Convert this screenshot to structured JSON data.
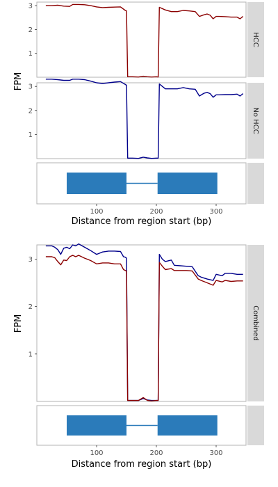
{
  "chart_data": [
    {
      "type": "line",
      "panel_group": "top",
      "ylabel": "FPM",
      "xlabel": "Distance from region start (bp)",
      "xlim": [
        0,
        350
      ],
      "xticks": [
        100,
        200,
        300
      ],
      "facets": [
        {
          "strip": "HCC",
          "ylim": [
            0,
            3.15
          ],
          "yticks": [
            1,
            2,
            3
          ],
          "series": [
            {
              "color": "#8b0000",
              "x": [
                15,
                25,
                35,
                45,
                55,
                60,
                70,
                80,
                90,
                100,
                110,
                120,
                130,
                140,
                148,
                150,
                152,
                160,
                170,
                178,
                185,
                192,
                200,
                203,
                205,
                215,
                225,
                235,
                245,
                255,
                265,
                272,
                280,
                285,
                290,
                295,
                300,
                305,
                315,
                325,
                335,
                340,
                345
              ],
              "y": [
                3.0,
                3.0,
                3.02,
                2.98,
                2.97,
                3.05,
                3.05,
                3.04,
                3.0,
                2.95,
                2.92,
                2.93,
                2.94,
                2.95,
                2.8,
                2.78,
                0.02,
                0.02,
                0.01,
                0.04,
                0.02,
                0.01,
                0.02,
                0.01,
                2.93,
                2.82,
                2.75,
                2.75,
                2.8,
                2.78,
                2.75,
                2.55,
                2.62,
                2.65,
                2.6,
                2.45,
                2.55,
                2.55,
                2.54,
                2.52,
                2.52,
                2.45,
                2.55
              ]
            }
          ]
        },
        {
          "strip": "No HCC",
          "ylim": [
            0,
            3.15
          ],
          "yticks": [
            1,
            2,
            3
          ],
          "series": [
            {
              "color": "#00008b",
              "x": [
                15,
                25,
                35,
                45,
                55,
                60,
                70,
                80,
                90,
                100,
                110,
                120,
                130,
                140,
                148,
                150,
                152,
                160,
                170,
                178,
                185,
                192,
                200,
                203,
                205,
                215,
                225,
                235,
                245,
                255,
                265,
                272,
                280,
                285,
                290,
                295,
                300,
                305,
                315,
                325,
                335,
                340,
                345
              ],
              "y": [
                3.3,
                3.3,
                3.28,
                3.25,
                3.25,
                3.3,
                3.3,
                3.28,
                3.22,
                3.15,
                3.12,
                3.15,
                3.18,
                3.2,
                3.08,
                3.05,
                0.02,
                0.02,
                0.01,
                0.06,
                0.03,
                0.01,
                0.02,
                0.02,
                3.1,
                2.9,
                2.9,
                2.9,
                2.95,
                2.9,
                2.88,
                2.6,
                2.72,
                2.75,
                2.7,
                2.55,
                2.65,
                2.65,
                2.66,
                2.66,
                2.68,
                2.6,
                2.7
              ]
            }
          ]
        }
      ],
      "gene_model": {
        "exons": [
          [
            50,
            150
          ],
          [
            202,
            302
          ]
        ],
        "intron": [
          150,
          202
        ],
        "color": "#2b7bba"
      }
    },
    {
      "type": "line",
      "panel_group": "bottom",
      "ylabel": "FPM",
      "xlabel": "Distance from region start (bp)",
      "xlim": [
        0,
        350
      ],
      "xticks": [
        100,
        200,
        300
      ],
      "facets": [
        {
          "strip": "Combined",
          "ylim": [
            0,
            3.3
          ],
          "yticks": [
            1,
            2,
            3
          ],
          "series": [
            {
              "color": "#00008b",
              "x": [
                15,
                25,
                30,
                35,
                40,
                45,
                50,
                55,
                60,
                65,
                70,
                80,
                90,
                100,
                110,
                120,
                130,
                140,
                145,
                148,
                150,
                152,
                160,
                170,
                178,
                185,
                192,
                200,
                203,
                205,
                210,
                215,
                225,
                230,
                240,
                250,
                260,
                270,
                275,
                285,
                295,
                300,
                310,
                315,
                325,
                335,
                345
              ],
              "y": [
                3.28,
                3.28,
                3.25,
                3.2,
                3.1,
                3.23,
                3.25,
                3.22,
                3.3,
                3.28,
                3.32,
                3.25,
                3.18,
                3.1,
                3.15,
                3.17,
                3.17,
                3.16,
                3.05,
                3.04,
                3.02,
                0.02,
                0.02,
                0.02,
                0.06,
                0.03,
                0.02,
                0.02,
                0.02,
                3.1,
                3.0,
                2.95,
                2.98,
                2.87,
                2.86,
                2.85,
                2.84,
                2.65,
                2.62,
                2.58,
                2.55,
                2.68,
                2.65,
                2.7,
                2.7,
                2.68,
                2.68
              ]
            },
            {
              "color": "#8b0000",
              "x": [
                15,
                25,
                30,
                35,
                40,
                45,
                50,
                55,
                60,
                65,
                70,
                80,
                90,
                100,
                110,
                120,
                130,
                140,
                145,
                148,
                150,
                152,
                160,
                170,
                178,
                185,
                192,
                200,
                203,
                205,
                210,
                215,
                225,
                230,
                240,
                250,
                260,
                270,
                275,
                285,
                295,
                300,
                310,
                315,
                325,
                335,
                345
              ],
              "y": [
                3.05,
                3.05,
                3.03,
                2.95,
                2.88,
                2.98,
                2.97,
                3.05,
                3.08,
                3.05,
                3.08,
                3.02,
                2.97,
                2.9,
                2.92,
                2.92,
                2.9,
                2.9,
                2.78,
                2.76,
                2.75,
                0.02,
                0.02,
                0.02,
                0.08,
                0.02,
                0.01,
                0.02,
                0.02,
                2.93,
                2.85,
                2.78,
                2.8,
                2.76,
                2.76,
                2.76,
                2.75,
                2.58,
                2.55,
                2.5,
                2.45,
                2.55,
                2.52,
                2.55,
                2.53,
                2.54,
                2.54
              ]
            }
          ]
        }
      ],
      "gene_model": {
        "exons": [
          [
            50,
            150
          ],
          [
            202,
            302
          ]
        ],
        "intron": [
          150,
          202
        ],
        "color": "#2b7bba"
      }
    }
  ]
}
